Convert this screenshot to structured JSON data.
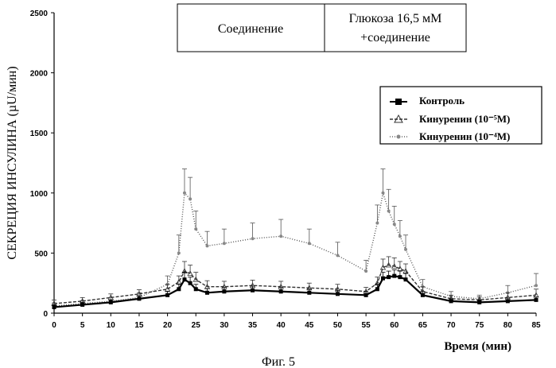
{
  "chart_data": {
    "type": "line",
    "title": "",
    "caption": "Фиг. 5",
    "xlabel": "Время (мин)",
    "ylabel": "СЕКРЕЦИЯ ИНСУЛИНА (µU/мин)",
    "xlim": [
      0,
      85
    ],
    "ylim": [
      0,
      2500
    ],
    "xticks": [
      "0",
      "5",
      "10",
      "15",
      "20",
      "25",
      "30",
      "35",
      "40",
      "45",
      "50",
      "55",
      "60",
      "65",
      "70",
      "75",
      "80",
      "85"
    ],
    "yticks": [
      "0",
      "500",
      "1000",
      "1500",
      "2000",
      "2500"
    ],
    "grid": false,
    "legend_position": "top-right",
    "header_boxes": [
      "Соединение",
      "Глюкоза 16,5 мМ",
      "+соединение"
    ],
    "series": [
      {
        "name": "Контроль",
        "color": "#000000",
        "x": [
          0,
          5,
          10,
          15,
          20,
          22,
          23,
          24,
          25,
          27,
          30,
          35,
          40,
          45,
          50,
          55,
          57,
          58,
          59,
          60,
          61,
          62,
          65,
          70,
          75,
          80,
          85
        ],
        "y": [
          50,
          70,
          90,
          120,
          150,
          200,
          280,
          250,
          200,
          170,
          180,
          190,
          180,
          170,
          160,
          150,
          200,
          290,
          300,
          310,
          300,
          280,
          150,
          100,
          90,
          100,
          110
        ],
        "err": [
          20,
          20,
          20,
          25,
          30,
          40,
          60,
          50,
          40,
          35,
          35,
          35,
          35,
          30,
          30,
          30,
          40,
          50,
          50,
          50,
          50,
          50,
          30,
          20,
          20,
          25,
          25
        ]
      },
      {
        "name": "Кинуренин (10⁻⁵M)",
        "color": "#333333",
        "x": [
          0,
          5,
          10,
          15,
          20,
          22,
          23,
          24,
          25,
          27,
          30,
          35,
          40,
          45,
          50,
          55,
          57,
          58,
          59,
          60,
          61,
          62,
          65,
          70,
          75,
          80,
          85
        ],
        "y": [
          80,
          100,
          130,
          160,
          200,
          260,
          350,
          330,
          280,
          220,
          220,
          230,
          220,
          210,
          200,
          180,
          250,
          380,
          400,
          390,
          370,
          350,
          180,
          120,
          110,
          130,
          150
        ],
        "err": [
          30,
          30,
          30,
          35,
          40,
          50,
          80,
          70,
          60,
          50,
          45,
          45,
          45,
          40,
          40,
          35,
          50,
          70,
          70,
          70,
          60,
          60,
          40,
          30,
          25,
          40,
          50
        ]
      },
      {
        "name": "Кинуренин (10⁻⁴M)",
        "color": "#555555",
        "x": [
          0,
          5,
          10,
          15,
          20,
          22,
          23,
          24,
          25,
          27,
          30,
          35,
          40,
          45,
          50,
          55,
          57,
          58,
          59,
          60,
          61,
          62,
          65,
          70,
          75,
          80,
          85
        ],
        "y": [
          60,
          80,
          100,
          130,
          240,
          500,
          1000,
          950,
          700,
          560,
          580,
          620,
          640,
          580,
          480,
          350,
          750,
          1000,
          850,
          740,
          640,
          530,
          220,
          140,
          120,
          170,
          230
        ],
        "err": [
          25,
          25,
          30,
          40,
          70,
          150,
          200,
          180,
          150,
          120,
          120,
          130,
          140,
          120,
          110,
          90,
          150,
          200,
          180,
          150,
          130,
          120,
          60,
          40,
          30,
          60,
          100
        ]
      }
    ]
  }
}
